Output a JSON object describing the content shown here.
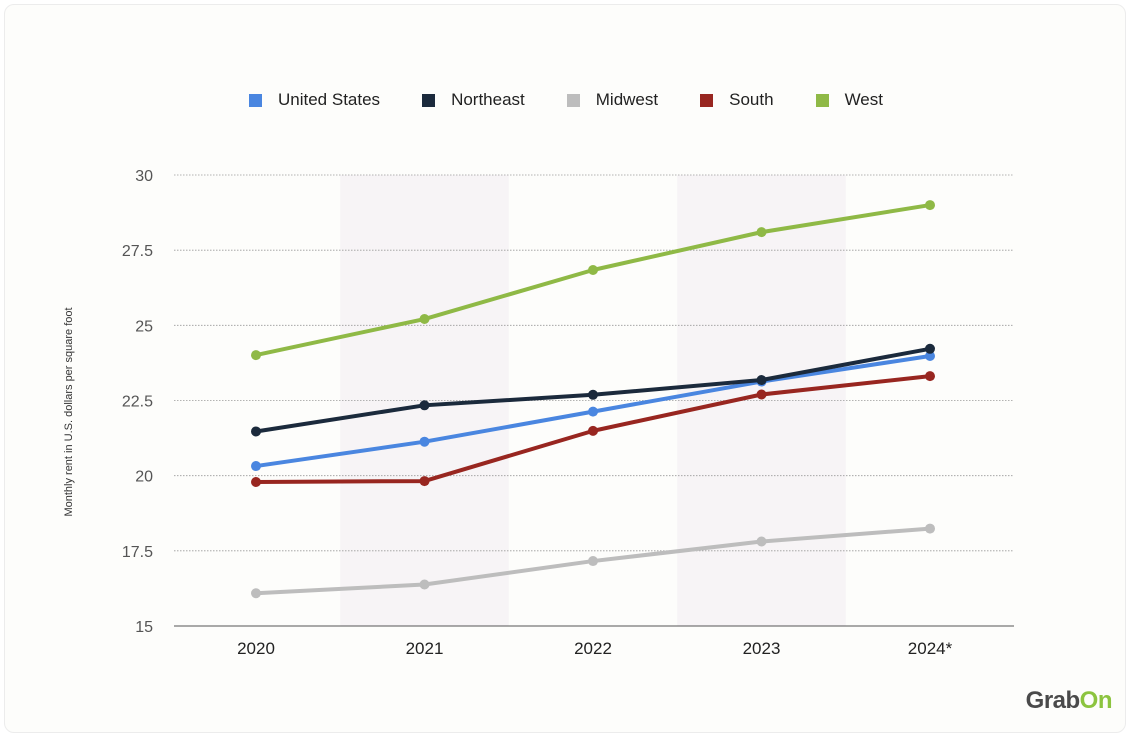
{
  "chart_data": {
    "type": "line",
    "categories": [
      "2020",
      "2021",
      "2022",
      "2023",
      "2024*"
    ],
    "ylabel": "Monthly rent in U.S. dollars per square foot",
    "ylim": [
      15,
      30
    ],
    "yticks": [
      "15",
      "17.5",
      "20",
      "22.5",
      "25",
      "27.5",
      "30"
    ],
    "ytick_values": [
      15,
      17.5,
      20,
      22.5,
      25,
      27.5,
      30
    ],
    "grid": true,
    "legend_position": "top-center",
    "shaded_categories": [
      "2021",
      "2023"
    ],
    "series": [
      {
        "name": "United States",
        "color": "#4a86e0",
        "values": [
          20.32,
          21.13,
          22.13,
          23.13,
          23.98
        ]
      },
      {
        "name": "Northeast",
        "color": "#1b2a3c",
        "values": [
          21.47,
          22.34,
          22.69,
          23.18,
          24.22
        ]
      },
      {
        "name": "Midwest",
        "color": "#bdbdbd",
        "values": [
          16.09,
          16.38,
          17.16,
          17.81,
          18.24
        ]
      },
      {
        "name": "South",
        "color": "#982620",
        "values": [
          19.79,
          19.82,
          21.49,
          22.7,
          23.31
        ]
      },
      {
        "name": "West",
        "color": "#8fb946",
        "values": [
          24.01,
          25.21,
          26.84,
          28.1,
          29.0
        ]
      }
    ]
  },
  "logo": {
    "part1": "Grab",
    "part2": "On"
  }
}
